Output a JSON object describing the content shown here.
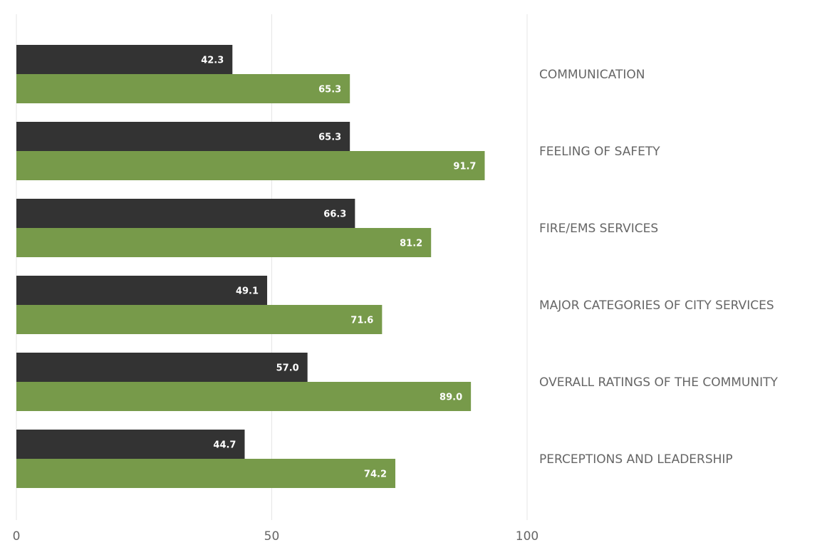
{
  "chart_data": {
    "type": "bar",
    "orientation": "horizontal",
    "title": "",
    "xlabel": "",
    "ylabel": "",
    "xlim": [
      0,
      100
    ],
    "xticks": [
      0,
      50,
      100
    ],
    "grid": true,
    "category_label_position": "right",
    "categories": [
      "COMMUNICATION",
      "FEELING OF SAFETY",
      "FIRE/EMS SERVICES",
      "MAJOR CATEGORIES OF CITY SERVICES",
      "OVERALL RATINGS OF THE COMMUNITY",
      "PERCEPTIONS AND LEADERSHIP"
    ],
    "series": [
      {
        "color": "#333333",
        "values": [
          42.3,
          65.3,
          66.3,
          49.1,
          57.0,
          44.7
        ],
        "labels": [
          "42.3",
          "65.3",
          "66.3",
          "49.1",
          "57.0",
          "44.7"
        ]
      },
      {
        "color": "#779a4a",
        "values": [
          65.3,
          91.7,
          81.2,
          71.6,
          89.0,
          74.2
        ],
        "labels": [
          "65.3",
          "91.7",
          "81.2",
          "71.6",
          "89.0",
          "74.2"
        ]
      }
    ]
  }
}
